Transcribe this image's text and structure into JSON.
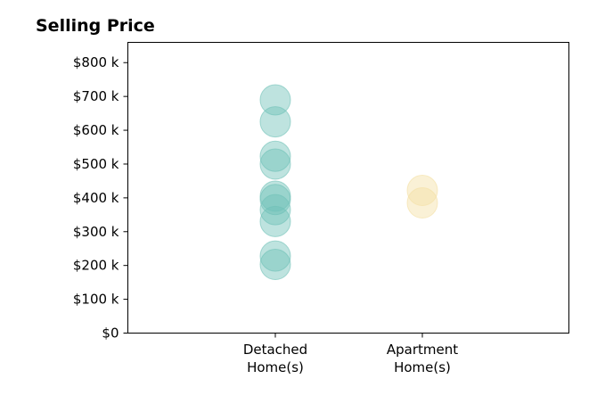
{
  "chart_data": {
    "type": "scatter",
    "title": "Selling Price",
    "xlabel": "",
    "ylabel": "",
    "ylim": [
      0,
      860000
    ],
    "y_ticks": [
      0,
      100000,
      200000,
      300000,
      400000,
      500000,
      600000,
      700000,
      800000
    ],
    "y_tick_labels": [
      "$0",
      "$100 k",
      "$200 k",
      "$300 k",
      "$400 k",
      "$500 k",
      "$600 k",
      "$700 k",
      "$800 k"
    ],
    "categories": [
      {
        "line1": "Detached",
        "line2": "Home(s)"
      },
      {
        "line1": "Apartment",
        "line2": "Home(s)"
      }
    ],
    "grid": false,
    "legend": "none",
    "series": [
      {
        "category_index": 0,
        "color": "#6fc1b8",
        "values": [
          690000,
          625000,
          523000,
          500000,
          405000,
          395000,
          365000,
          330000,
          228000,
          203000
        ]
      },
      {
        "category_index": 1,
        "color": "#f3dfa4",
        "values": [
          422000,
          385000
        ]
      }
    ]
  }
}
